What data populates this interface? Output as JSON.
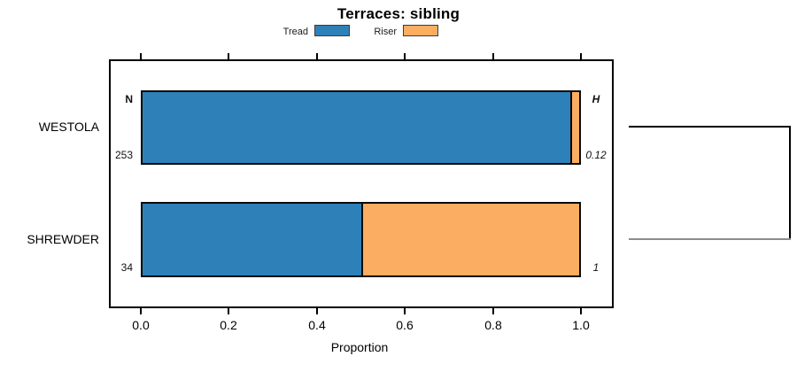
{
  "chart_data": {
    "type": "bar",
    "orientation": "horizontal",
    "stacked": true,
    "title": "Terraces: sibling",
    "xlabel": "Proportion",
    "xlim": [
      0,
      1
    ],
    "x_ticks": [
      "0.0",
      "0.2",
      "0.4",
      "0.6",
      "0.8",
      "1.0"
    ],
    "grid": false,
    "legend_position": "top-center",
    "categories": [
      "WESTOLA",
      "SHREWDER"
    ],
    "series": [
      {
        "name": "Tread",
        "color": "#2E80B9",
        "values": [
          0.98,
          0.5
        ]
      },
      {
        "name": "Riser",
        "color": "#FBAD62",
        "values": [
          0.02,
          0.5
        ]
      }
    ],
    "row_annotations": {
      "n_header": "N",
      "n_values": [
        "253",
        "34"
      ],
      "h_header": "H",
      "h_values": [
        "0.12",
        "1"
      ]
    },
    "right_bracket": {
      "description": "bracket joining the two category rows at the right edge",
      "top_line_color": "#000000",
      "bottom_line_color": "#8c8c8c"
    }
  }
}
